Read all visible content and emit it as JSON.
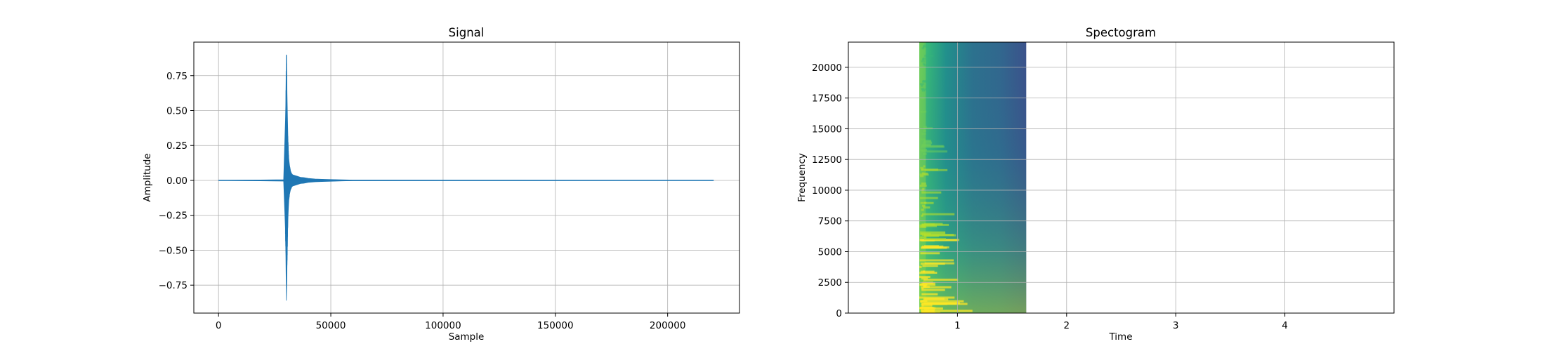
{
  "chart_data": [
    {
      "type": "line",
      "title": "Signal",
      "xlabel": "Sample",
      "ylabel": "Amplitude",
      "xlim": [
        -11000,
        232000
      ],
      "ylim": [
        -0.95,
        0.99
      ],
      "xticks": [
        0,
        50000,
        100000,
        150000,
        200000
      ],
      "xtick_labels": [
        "0",
        "50000",
        "100000",
        "150000",
        "200000"
      ],
      "yticks": [
        0.75,
        0.5,
        0.25,
        0.0,
        -0.25,
        -0.5,
        -0.75
      ],
      "ytick_labels": [
        "0.75",
        "0.50",
        "0.25",
        "0.00",
        "−0.25",
        "−0.50",
        "−0.75"
      ],
      "grid": true,
      "line_color": "#1f77b4",
      "series": [
        {
          "x": [
            0,
            29000,
            29800,
            30000,
            30200,
            30400,
            30500,
            30700,
            30900,
            31100,
            31300,
            31600,
            32000,
            32500,
            33000,
            34000,
            35000,
            36500,
            38000,
            40000,
            43000,
            46000,
            50000,
            55000,
            60000,
            220500
          ],
          "y_max": [
            0,
            0.005,
            0.43,
            0.58,
            0.9,
            0.75,
            0.62,
            0.45,
            0.3,
            0.2,
            0.15,
            0.11,
            0.07,
            0.05,
            0.04,
            0.035,
            0.03,
            0.022,
            0.02,
            0.014,
            0.01,
            0.008,
            0.006,
            0.004,
            0.002,
            0
          ],
          "y_min": [
            0,
            -0.005,
            -0.35,
            -0.55,
            -0.86,
            -0.72,
            -0.6,
            -0.42,
            -0.28,
            -0.2,
            -0.14,
            -0.1,
            -0.07,
            -0.05,
            -0.04,
            -0.035,
            -0.03,
            -0.022,
            -0.02,
            -0.014,
            -0.01,
            -0.008,
            -0.006,
            -0.004,
            -0.002,
            0
          ]
        }
      ]
    },
    {
      "type": "heatmap",
      "title": "Spectogram",
      "xlabel": "Time",
      "ylabel": "Frequency",
      "xlim": [
        0.0,
        5.0
      ],
      "ylim": [
        0,
        22050
      ],
      "xticks": [
        1,
        2,
        3,
        4
      ],
      "xtick_labels": [
        "1",
        "2",
        "3",
        "4"
      ],
      "yticks": [
        0,
        2500,
        5000,
        7500,
        10000,
        12500,
        15000,
        17500,
        20000
      ],
      "ytick_labels": [
        "0",
        "2500",
        "5000",
        "7500",
        "10000",
        "12500",
        "15000",
        "17500",
        "20000"
      ],
      "grid": true,
      "colormap": "viridis",
      "data_extent_time": [
        0.65,
        1.63
      ],
      "data_extent_freq": [
        0,
        22050
      ]
    }
  ]
}
